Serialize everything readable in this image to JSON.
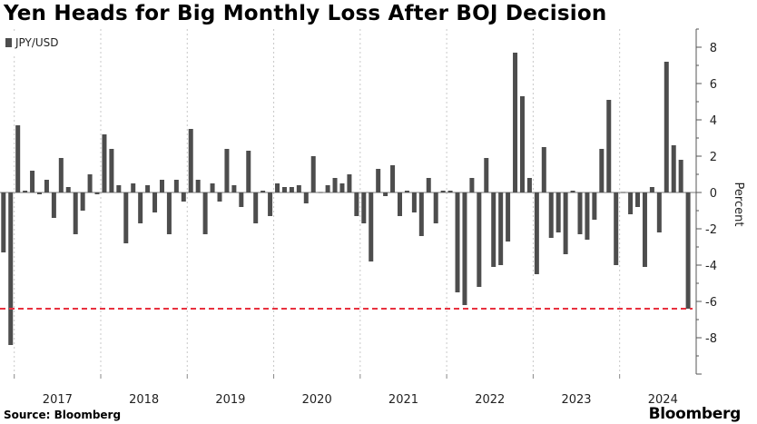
{
  "title": "Yen Heads for Big Monthly Loss After BOJ Decision",
  "source": "Source: Bloomberg",
  "brand": "Bloomberg",
  "colors": {
    "bar": "#4d4d4d",
    "threshold": "#e8313f",
    "grid": "#c8c8c8"
  },
  "chart_data": {
    "type": "bar",
    "legend": "JPY/USD",
    "legend_position": "top-left",
    "ylabel": "Percent",
    "ylim": [
      -10,
      9
    ],
    "yticks": [
      8,
      6,
      4,
      2,
      0,
      -2,
      -4,
      -6,
      -8
    ],
    "y_axis_side": "right",
    "grid": "vertical-yearly",
    "year_labels": [
      "2017",
      "2018",
      "2019",
      "2020",
      "2021",
      "2022",
      "2023",
      "2024"
    ],
    "threshold_line": {
      "value": -6.4,
      "style": "dashed"
    },
    "months_start": "2016-11",
    "values": [
      -3.3,
      -8.4,
      3.7,
      0.1,
      1.2,
      -0.1,
      0.7,
      -1.4,
      1.9,
      0.3,
      -2.3,
      -1.0,
      1.0,
      -0.1,
      3.2,
      2.4,
      0.4,
      -2.8,
      0.5,
      -1.7,
      0.4,
      -1.1,
      0.7,
      -2.3,
      0.7,
      -0.5,
      3.5,
      0.7,
      -2.3,
      0.5,
      -0.5,
      2.4,
      0.4,
      -0.8,
      2.3,
      -1.7,
      0.1,
      -1.3,
      0.5,
      0.3,
      0.3,
      0.4,
      -0.6,
      2.0,
      0.0,
      0.4,
      0.8,
      0.5,
      1.0,
      -1.3,
      -1.7,
      -3.8,
      1.3,
      -0.2,
      1.5,
      -1.3,
      0.1,
      -1.1,
      -2.4,
      0.8,
      -1.7,
      0.1,
      0.1,
      -5.5,
      -6.2,
      0.8,
      -5.2,
      1.9,
      -4.1,
      -4.0,
      -2.7,
      7.7,
      5.3,
      0.8,
      -4.5,
      2.5,
      -2.5,
      -2.2,
      -3.4,
      0.1,
      -2.3,
      -2.6,
      -1.5,
      2.4,
      5.1,
      -4.0,
      0.0,
      -1.2,
      -0.8,
      -4.1,
      0.3,
      -2.2,
      7.2,
      2.6,
      1.8,
      -6.4
    ]
  }
}
